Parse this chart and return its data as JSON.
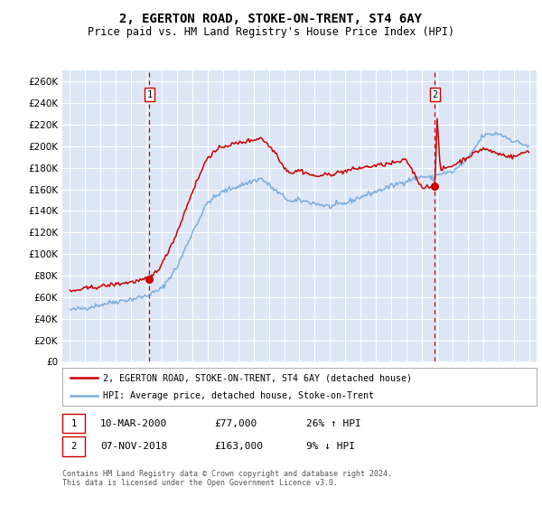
{
  "title": "2, EGERTON ROAD, STOKE-ON-TRENT, ST4 6AY",
  "subtitle": "Price paid vs. HM Land Registry's House Price Index (HPI)",
  "ylim": [
    0,
    270000
  ],
  "yticks": [
    0,
    20000,
    40000,
    60000,
    80000,
    100000,
    120000,
    140000,
    160000,
    180000,
    200000,
    220000,
    240000,
    260000
  ],
  "plot_bg": "#dce6f5",
  "grid_color": "#ffffff",
  "sale1_date_x": 2000.19,
  "sale1_price": 77000,
  "sale2_date_x": 2018.85,
  "sale2_price": 163000,
  "legend_line1": "2, EGERTON ROAD, STOKE-ON-TRENT, ST4 6AY (detached house)",
  "legend_line2": "HPI: Average price, detached house, Stoke-on-Trent",
  "table_row1": [
    "1",
    "10-MAR-2000",
    "£77,000",
    "26% ↑ HPI"
  ],
  "table_row2": [
    "2",
    "07-NOV-2018",
    "£163,000",
    "9% ↓ HPI"
  ],
  "footer": "Contains HM Land Registry data © Crown copyright and database right 2024.\nThis data is licensed under the Open Government Licence v3.0.",
  "hpi_color": "#7aaddc",
  "price_color": "#cc0000",
  "marker_color": "#cc0000",
  "vline_color": "#cc0000",
  "title_fontsize": 10,
  "subtitle_fontsize": 8.5,
  "xmin": 1994.5,
  "xmax": 2025.5,
  "hpi_control": [
    [
      1995.0,
      48000
    ],
    [
      1996.0,
      50000
    ],
    [
      1997.0,
      53000
    ],
    [
      1998.0,
      56000
    ],
    [
      1999.0,
      58000
    ],
    [
      2000.0,
      61000
    ],
    [
      2001.0,
      68000
    ],
    [
      2002.0,
      88000
    ],
    [
      2003.0,
      120000
    ],
    [
      2004.0,
      148000
    ],
    [
      2005.0,
      158000
    ],
    [
      2006.0,
      163000
    ],
    [
      2007.0,
      168000
    ],
    [
      2007.5,
      170000
    ],
    [
      2008.5,
      158000
    ],
    [
      2009.5,
      148000
    ],
    [
      2010.0,
      150000
    ],
    [
      2011.0,
      147000
    ],
    [
      2012.0,
      144000
    ],
    [
      2013.0,
      147000
    ],
    [
      2014.0,
      153000
    ],
    [
      2015.0,
      158000
    ],
    [
      2016.0,
      163000
    ],
    [
      2017.0,
      168000
    ],
    [
      2018.0,
      172000
    ],
    [
      2018.85,
      170000
    ],
    [
      2019.0,
      174000
    ],
    [
      2020.0,
      176000
    ],
    [
      2021.0,
      188000
    ],
    [
      2022.0,
      210000
    ],
    [
      2023.0,
      212000
    ],
    [
      2024.0,
      205000
    ],
    [
      2025.0,
      200000
    ]
  ],
  "prop_control": [
    [
      1995.0,
      65000
    ],
    [
      1996.0,
      68000
    ],
    [
      1997.0,
      70000
    ],
    [
      1998.0,
      72000
    ],
    [
      1999.0,
      74000
    ],
    [
      2000.0,
      76500
    ],
    [
      2000.19,
      77000
    ],
    [
      2001.0,
      90000
    ],
    [
      2002.0,
      120000
    ],
    [
      2003.0,
      158000
    ],
    [
      2004.0,
      190000
    ],
    [
      2005.0,
      200000
    ],
    [
      2006.0,
      203000
    ],
    [
      2007.0,
      206000
    ],
    [
      2007.5,
      208000
    ],
    [
      2008.5,
      193000
    ],
    [
      2009.0,
      180000
    ],
    [
      2009.5,
      175000
    ],
    [
      2010.0,
      178000
    ],
    [
      2011.0,
      172000
    ],
    [
      2012.0,
      174000
    ],
    [
      2013.0,
      177000
    ],
    [
      2014.0,
      180000
    ],
    [
      2015.0,
      182000
    ],
    [
      2016.0,
      184000
    ],
    [
      2017.0,
      187000
    ],
    [
      2018.0,
      162000
    ],
    [
      2018.85,
      163000
    ],
    [
      2019.0,
      225000
    ],
    [
      2019.2,
      178000
    ],
    [
      2020.0,
      182000
    ],
    [
      2021.0,
      190000
    ],
    [
      2022.0,
      198000
    ],
    [
      2023.0,
      193000
    ],
    [
      2024.0,
      190000
    ],
    [
      2025.0,
      196000
    ]
  ]
}
